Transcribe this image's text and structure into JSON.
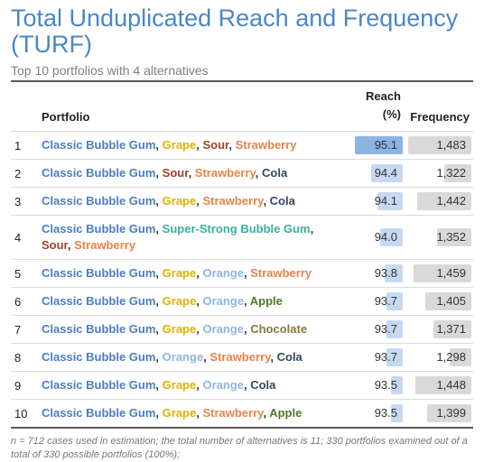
{
  "title": "Total Unduplicated Reach and Frequency (TURF)",
  "subtitle": "Top 10 portfolios with 4 alternatives",
  "columns": {
    "portfolio": "Portfolio",
    "reach_line1": "Reach",
    "reach_line2": "(%)",
    "frequency": "Frequency"
  },
  "colors": {
    "Classic Bubble Gum": "#4a7ebf",
    "Grape": "#e0b000",
    "Sour": "#a0422a",
    "Strawberry": "#e8834a",
    "Cola": "#2e4a62",
    "Orange": "#8fb4e3",
    "Apple": "#4e7a2a",
    "Chocolate": "#8a7640",
    "Super-Strong Bubble Gum": "#3aaea0",
    "reach_bar": "#c5d9f1",
    "frequency_bar": "#d9d9d9"
  },
  "reach_scale": {
    "min": 93.0,
    "max": 95.3
  },
  "frequency_scale": {
    "min": 1200,
    "max": 1490
  },
  "rows": [
    {
      "rank": "1",
      "items": [
        "Classic Bubble Gum",
        "Grape",
        "Sour",
        "Strawberry"
      ],
      "reach": "95.1",
      "reach_value": 95.1,
      "frequency": "1,483",
      "frequency_value": 1483,
      "reach_highlight": true
    },
    {
      "rank": "2",
      "items": [
        "Classic Bubble Gum",
        "Sour",
        "Strawberry",
        "Cola"
      ],
      "reach": "94.4",
      "reach_value": 94.4,
      "frequency": "1,322",
      "frequency_value": 1322
    },
    {
      "rank": "3",
      "items": [
        "Classic Bubble Gum",
        "Grape",
        "Strawberry",
        "Cola"
      ],
      "reach": "94.1",
      "reach_value": 94.1,
      "frequency": "1,442",
      "frequency_value": 1442
    },
    {
      "rank": "4",
      "items": [
        "Classic Bubble Gum",
        "Super-Strong Bubble Gum",
        "Sour",
        "Strawberry"
      ],
      "reach": "94.0",
      "reach_value": 94.0,
      "frequency": "1,352",
      "frequency_value": 1352
    },
    {
      "rank": "5",
      "items": [
        "Classic Bubble Gum",
        "Grape",
        "Orange",
        "Strawberry"
      ],
      "reach": "93.8",
      "reach_value": 93.8,
      "frequency": "1,459",
      "frequency_value": 1459
    },
    {
      "rank": "6",
      "items": [
        "Classic Bubble Gum",
        "Grape",
        "Orange",
        "Apple"
      ],
      "reach": "93.7",
      "reach_value": 93.7,
      "frequency": "1,405",
      "frequency_value": 1405
    },
    {
      "rank": "7",
      "items": [
        "Classic Bubble Gum",
        "Grape",
        "Orange",
        "Chocolate"
      ],
      "reach": "93.7",
      "reach_value": 93.7,
      "frequency": "1,371",
      "frequency_value": 1371
    },
    {
      "rank": "8",
      "items": [
        "Classic Bubble Gum",
        "Orange",
        "Strawberry",
        "Cola"
      ],
      "reach": "93.7",
      "reach_value": 93.7,
      "frequency": "1,298",
      "frequency_value": 1298
    },
    {
      "rank": "9",
      "items": [
        "Classic Bubble Gum",
        "Grape",
        "Orange",
        "Cola"
      ],
      "reach": "93.5",
      "reach_value": 93.5,
      "frequency": "1,448",
      "frequency_value": 1448
    },
    {
      "rank": "10",
      "items": [
        "Classic Bubble Gum",
        "Grape",
        "Strawberry",
        "Apple"
      ],
      "reach": "93.5",
      "reach_value": 93.5,
      "frequency": "1,399",
      "frequency_value": 1399
    }
  ],
  "footnote": "n = 712 cases used in estimation; the total number of alternatives is 11; 330 portfolios examined out of a total of 330 possible portfolios (100%);"
}
